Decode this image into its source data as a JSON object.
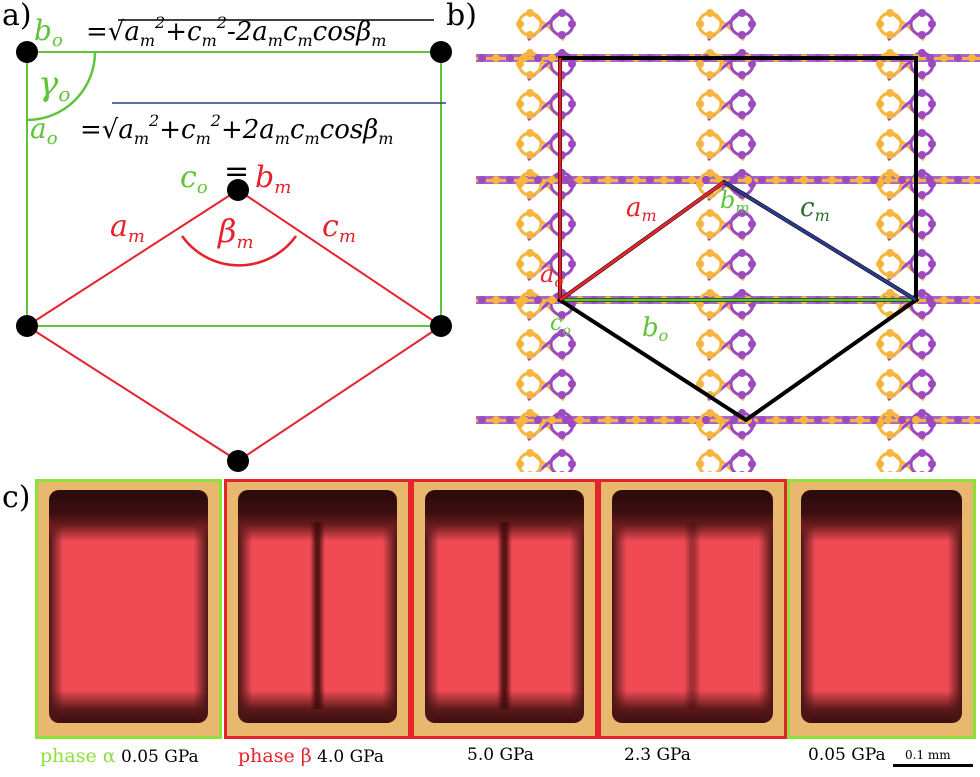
{
  "panels": {
    "a": {
      "label": "a)"
    },
    "b": {
      "label": "b)"
    },
    "c": {
      "label": "c)"
    }
  },
  "panel_a": {
    "bo_lhs": "b",
    "bo_lhs_sub": "o",
    "bo_rhs": "=√a<sub>m</sub><sup>2</sup>+c<sub>m</sub><sup>2</sup>-2a<sub>m</sub>c<sub>m</sub>cosβ<sub>m</sub>",
    "bo_formula_text": "bo=√am2+cm2-2amcmcosβm",
    "ao_formula_text": "ao=√am2+cm2+2amcmcosβm",
    "gamma": "γ",
    "gamma_sub": "o",
    "co": "c",
    "co_sub": "o",
    "equals": "=",
    "bm": "b",
    "bm_sub": "m",
    "am": "a",
    "am_sub": "m",
    "cm": "c",
    "cm_sub": "m",
    "beta": "β",
    "beta_sub": "m"
  },
  "panel_b": {
    "am": "a",
    "am_sub": "m",
    "bm": "b",
    "bm_sub": "m",
    "cm": "c",
    "cm_sub": "m",
    "ao": "a",
    "ao_sub": "o",
    "bo": "b",
    "bo_sub": "o",
    "co": "c",
    "co_sub": "o"
  },
  "panel_c": {
    "captions": [
      {
        "phase": "phase α",
        "pressure": "0.05 GPa"
      },
      {
        "phase": "phase β",
        "pressure": "4.0 GPa"
      },
      {
        "phase": "",
        "pressure": "5.0 GPa"
      },
      {
        "phase": "",
        "pressure": "2.3 GPa"
      },
      {
        "phase": "",
        "pressure": "0.05 GPa"
      }
    ],
    "scale_bar": "0.1 mm"
  },
  "colors": {
    "green": "#5fc43a",
    "red": "#e5232b",
    "blue": "#2d3a8c",
    "black": "#000000",
    "atom_orange": "#f5a81c",
    "atom_purple": "#8a2bb5"
  }
}
